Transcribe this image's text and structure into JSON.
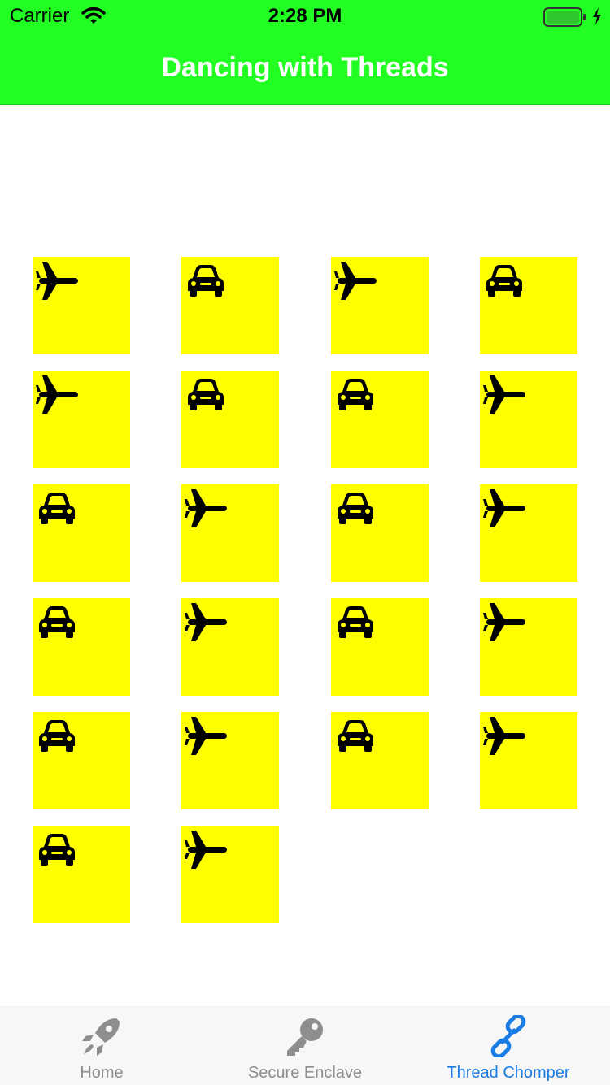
{
  "status_bar": {
    "carrier": "Carrier",
    "time": "2:28 PM"
  },
  "nav": {
    "title": "Dancing with Threads"
  },
  "colors": {
    "bar_green": "#22ff22",
    "tile_yellow": "#ffff00",
    "tab_active": "#1a7ce5",
    "tab_inactive": "#8e8e8e"
  },
  "tiles": [
    [
      "airplane-icon",
      "car-icon",
      "airplane-icon",
      "car-icon"
    ],
    [
      "airplane-icon",
      "car-icon",
      "car-icon",
      "airplane-icon"
    ],
    [
      "car-icon",
      "airplane-icon",
      "car-icon",
      "airplane-icon"
    ],
    [
      "car-icon",
      "airplane-icon",
      "car-icon",
      "airplane-icon"
    ],
    [
      "car-icon",
      "airplane-icon",
      "car-icon",
      "airplane-icon"
    ],
    [
      "car-icon",
      "airplane-icon"
    ]
  ],
  "tabs": [
    {
      "label": "Home",
      "icon": "rocket-icon",
      "active": false
    },
    {
      "label": "Secure Enclave",
      "icon": "key-icon",
      "active": false
    },
    {
      "label": "Thread Chomper",
      "icon": "link-icon",
      "active": true
    }
  ]
}
